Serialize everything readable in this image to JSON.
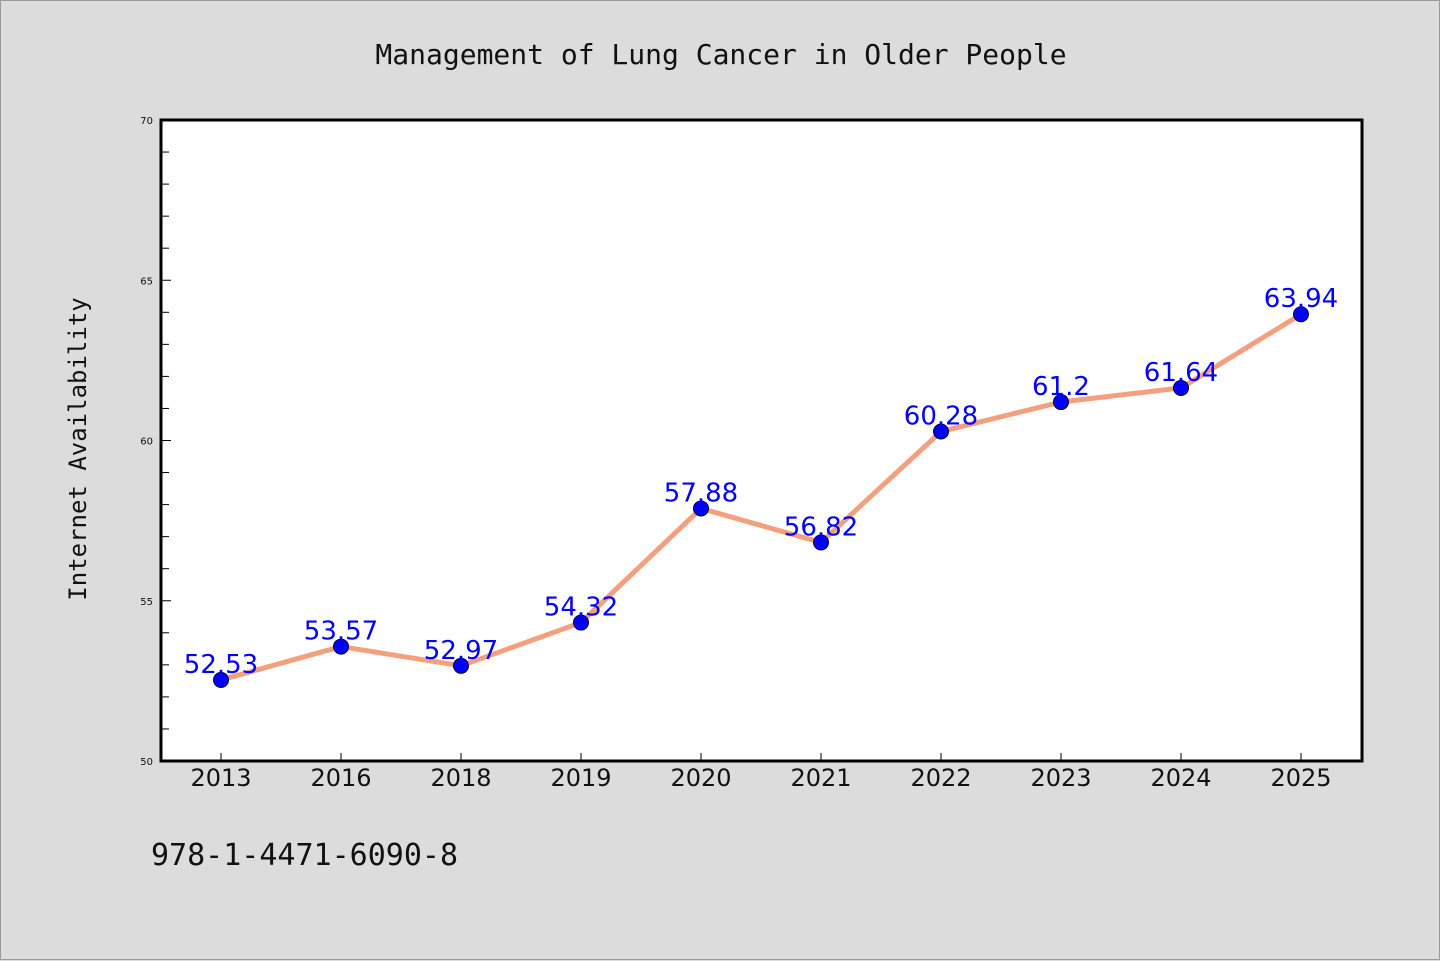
{
  "chart_data": {
    "type": "line",
    "title": "Management of Lung Cancer in Older People",
    "xlabel": "",
    "ylabel": "Internet Availability",
    "categories": [
      "2013",
      "2016",
      "2018",
      "2019",
      "2020",
      "2021",
      "2022",
      "2023",
      "2024",
      "2025"
    ],
    "series": [
      {
        "values": [
          52.53,
          53.57,
          52.97,
          54.32,
          57.88,
          56.82,
          60.28,
          61.2,
          61.64,
          63.94
        ],
        "data_labels": [
          "52.53",
          "53.57",
          "52.97",
          "54.32",
          "57.88",
          "56.82",
          "60.28",
          "61.2",
          "61.64",
          "63.94"
        ]
      }
    ],
    "ylim": [
      50,
      70
    ],
    "yticks": [
      "50",
      "55",
      "60",
      "65",
      "70"
    ],
    "grid": false,
    "legend": "none",
    "colors": {
      "line": "#f4a07e",
      "marker": "#0000ff",
      "data_label": "#0000ff",
      "background": "#dcdcdc",
      "plot_background": "#ffffff"
    }
  },
  "footer": {
    "isbn": "978-1-4471-6090-8"
  }
}
